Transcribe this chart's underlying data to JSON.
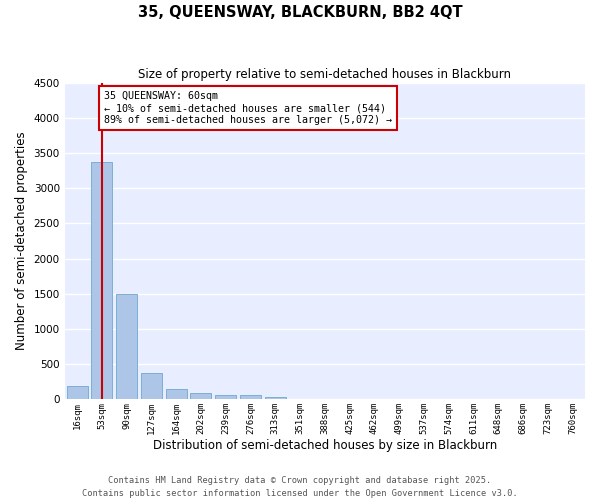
{
  "title": "35, QUEENSWAY, BLACKBURN, BB2 4QT",
  "subtitle": "Size of property relative to semi-detached houses in Blackburn",
  "xlabel": "Distribution of semi-detached houses by size in Blackburn",
  "ylabel": "Number of semi-detached properties",
  "categories": [
    "16sqm",
    "53sqm",
    "90sqm",
    "127sqm",
    "164sqm",
    "202sqm",
    "239sqm",
    "276sqm",
    "313sqm",
    "351sqm",
    "388sqm",
    "425sqm",
    "462sqm",
    "499sqm",
    "537sqm",
    "574sqm",
    "611sqm",
    "648sqm",
    "686sqm",
    "723sqm",
    "760sqm"
  ],
  "values": [
    185,
    3370,
    1500,
    370,
    140,
    80,
    60,
    50,
    25,
    0,
    0,
    0,
    0,
    0,
    0,
    0,
    0,
    0,
    0,
    0,
    0
  ],
  "bar_color": "#adc6e8",
  "bar_edgecolor": "#7bafd4",
  "vline_x": 1.0,
  "annotation_box_color": "#cc0000",
  "property_label": "35 QUEENSWAY: 60sqm",
  "smaller_pct": 10,
  "smaller_n": 544,
  "larger_pct": 89,
  "larger_n": 5072,
  "ylim": [
    0,
    4500
  ],
  "yticks": [
    0,
    500,
    1000,
    1500,
    2000,
    2500,
    3000,
    3500,
    4000,
    4500
  ],
  "bg_color": "#e8eeff",
  "grid_color": "#ffffff",
  "footer1": "Contains HM Land Registry data © Crown copyright and database right 2025.",
  "footer2": "Contains public sector information licensed under the Open Government Licence v3.0."
}
